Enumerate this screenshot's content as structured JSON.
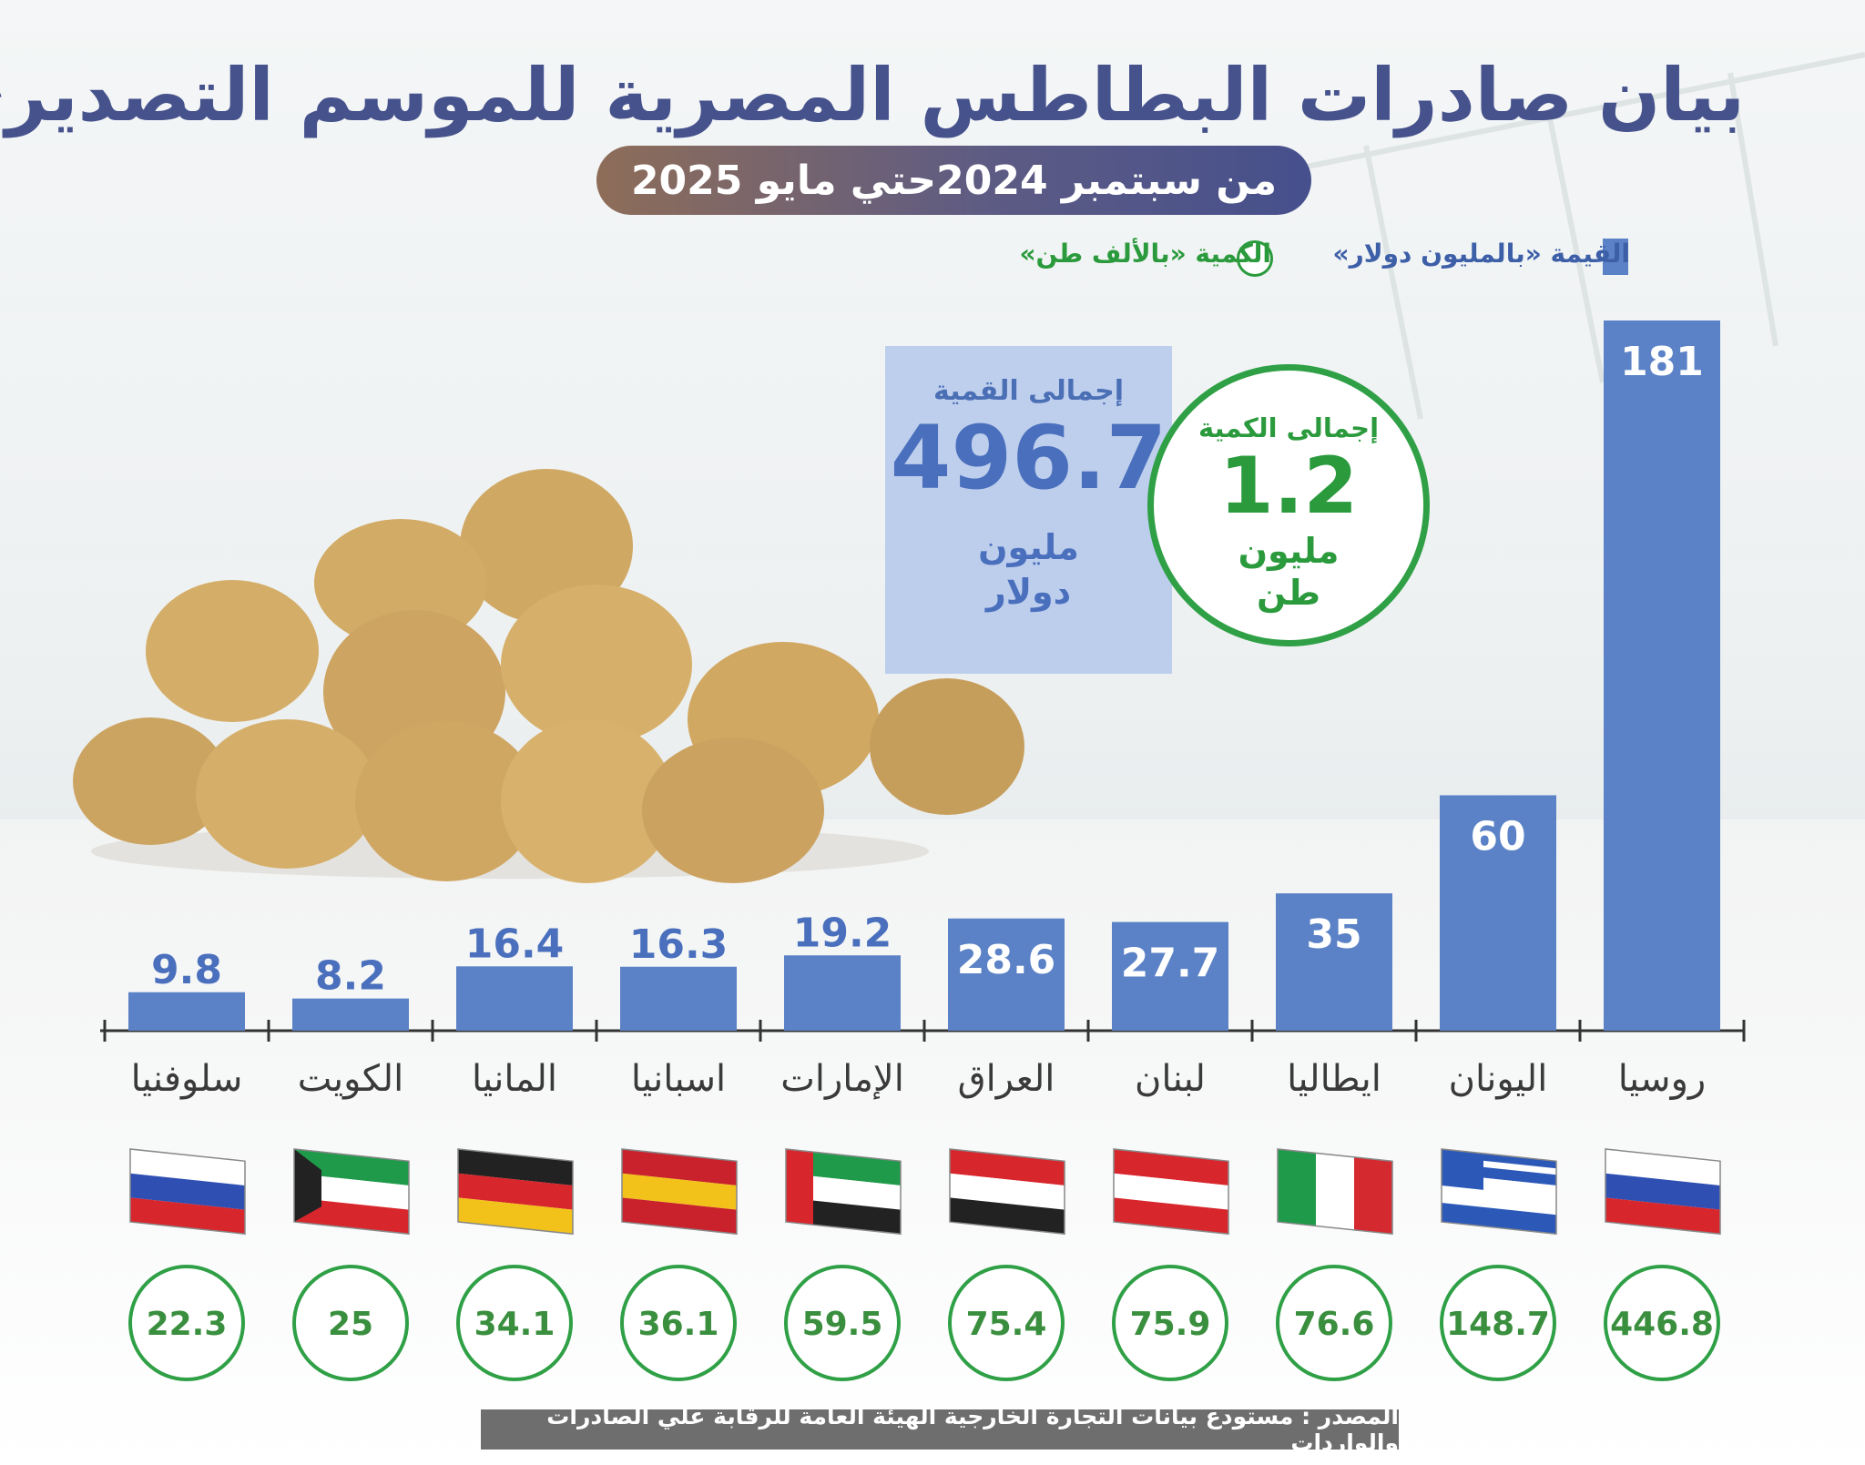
{
  "title": "بيان صادرات البطاطس المصرية للموسم التصديري",
  "subtitle": "من سبتمبر 2024حتي مايو 2025",
  "legend": {
    "value": "القيمة «بالمليون دولار»",
    "quantity": "الكمية «بالألف طن»"
  },
  "total_value": {
    "label": "إجمالى القمية",
    "number": "496.7",
    "unit_line1": "مليون",
    "unit_line2": "دولار"
  },
  "total_quantity": {
    "label": "إجمالى الكمية",
    "number": "1.2",
    "unit_line1": "مليون",
    "unit_line2": "طن"
  },
  "source": "المصدر : مستودع بيانات التجارة الخارجية  الهيئة العامة للرقابة علي الصادرات والواردات",
  "colors": {
    "bar": "#5b82c6",
    "quantity": "#2fa046",
    "title": "#46528c"
  },
  "chart_data": {
    "type": "bar",
    "categories": [
      "روسيا",
      "اليونان",
      "ايطاليا",
      "لبنان",
      "العراق",
      "الإمارات",
      "اسبانيا",
      "المانيا",
      "الكويت",
      "سلوفنيا"
    ],
    "series": [
      {
        "name": "القيمة «بالمليون دولار»",
        "values": [
          181,
          60,
          35,
          27.7,
          28.6,
          19.2,
          16.3,
          16.4,
          8.2,
          9.8
        ]
      },
      {
        "name": "الكمية «بالألف طن»",
        "values": [
          446.8,
          148.7,
          76.6,
          75.9,
          75.4,
          59.5,
          36.1,
          34.1,
          25,
          22.3
        ]
      }
    ],
    "value_labels": [
      "181",
      "60",
      "35",
      "27.7",
      "28.6",
      "19.2",
      "16.3",
      "16.4",
      "8.2",
      "9.8"
    ],
    "quantity_labels": [
      "446.8",
      "148.7",
      "76.6",
      "75.9",
      "75.4",
      "59.5",
      "36.1",
      "34.1",
      "25",
      "22.3"
    ],
    "flags": [
      "russia-flag",
      "greece-flag",
      "italy-flag",
      "lebanon-flag",
      "iraq-flag",
      "uae-flag",
      "spain-flag",
      "germany-flag",
      "kuwait-flag",
      "slovenia-flag"
    ]
  }
}
